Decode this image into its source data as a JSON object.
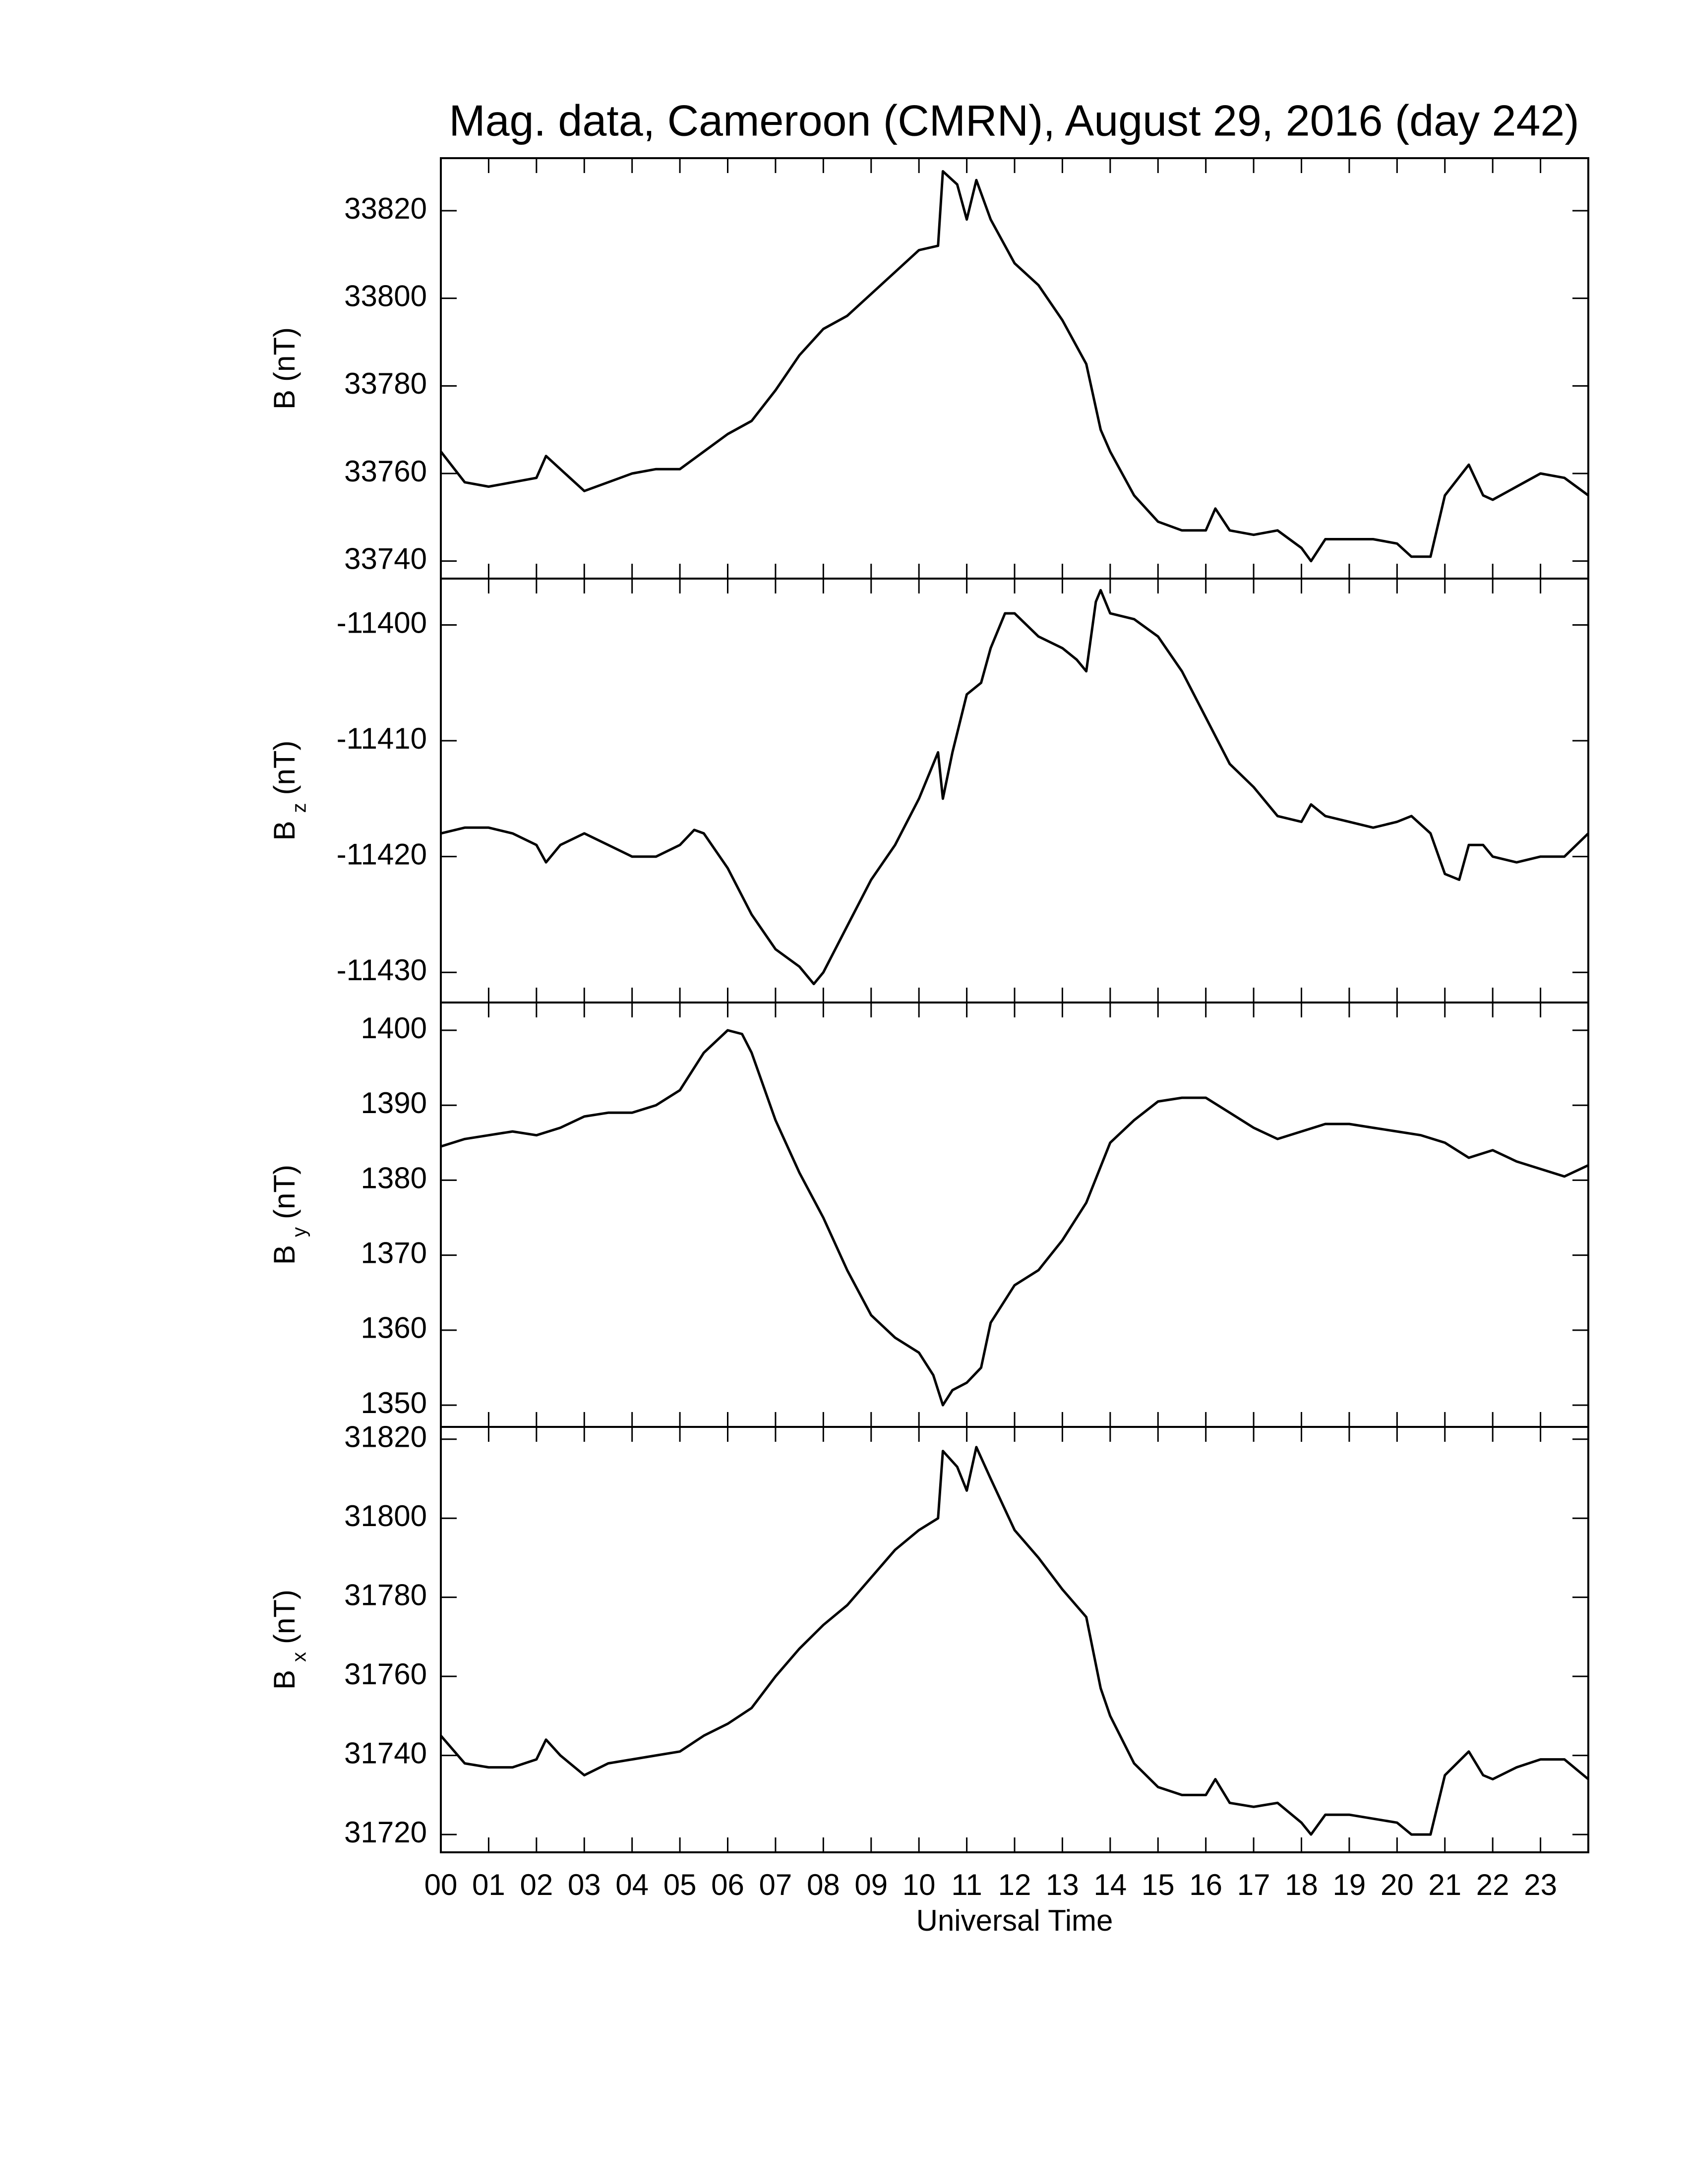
{
  "chart_data": [
    {
      "type": "line",
      "title": "Mag. data, Cameroon (CMRN), August 29, 2016 (day 242)",
      "ylabel": "B",
      "ylabel_unit": "(nT)",
      "color": "#000000",
      "xlim": [
        0,
        24
      ],
      "ylim": [
        33736,
        33832
      ],
      "yticks": [
        33740,
        33760,
        33780,
        33800,
        33820
      ],
      "x": [
        0,
        0.5,
        1,
        1.5,
        2,
        2.2,
        2.5,
        3,
        3.5,
        4,
        4.5,
        5,
        5.5,
        6,
        6.5,
        7,
        7.5,
        8,
        8.5,
        9,
        9.5,
        10,
        10.4,
        10.5,
        10.8,
        11,
        11.2,
        11.5,
        12,
        12.5,
        13,
        13.5,
        13.8,
        14,
        14.5,
        15,
        15.5,
        16,
        16.2,
        16.5,
        17,
        17.5,
        18,
        18.2,
        18.5,
        19,
        19.5,
        20,
        20.3,
        20.7,
        21,
        21.5,
        21.8,
        22,
        22.5,
        23,
        23.5,
        24
      ],
      "values": [
        33765,
        33758,
        33757,
        33758,
        33759,
        33764,
        33761,
        33756,
        33758,
        33760,
        33761,
        33761,
        33765,
        33769,
        33772,
        33779,
        33787,
        33793,
        33796,
        33801,
        33806,
        33811,
        33812,
        33829,
        33826,
        33818,
        33827,
        33818,
        33808,
        33803,
        33795,
        33785,
        33770,
        33765,
        33755,
        33749,
        33747,
        33747,
        33752,
        33747,
        33746,
        33747,
        33743,
        33740,
        33745,
        33745,
        33745,
        33744,
        33741,
        33741,
        33755,
        33762,
        33755,
        33754,
        33757,
        33760,
        33759,
        33755
      ]
    },
    {
      "type": "line",
      "ylabel": "B",
      "ylabel_subscript": "z",
      "ylabel_unit": "(nT)",
      "color": "#000000",
      "xlim": [
        0,
        24
      ],
      "ylim": [
        -11432.6,
        -11396
      ],
      "yticks": [
        -11430,
        -11420,
        -11410,
        -11400
      ],
      "x": [
        0,
        0.5,
        1,
        1.5,
        2,
        2.2,
        2.5,
        3,
        3.5,
        4,
        4.5,
        5,
        5.3,
        5.5,
        6,
        6.5,
        7,
        7.5,
        7.8,
        8,
        8.5,
        9,
        9.5,
        10,
        10.4,
        10.5,
        10.7,
        11,
        11.3,
        11.5,
        11.8,
        12,
        12.5,
        13,
        13.3,
        13.5,
        13.7,
        13.8,
        14,
        14.5,
        15,
        15.5,
        16,
        16.5,
        17,
        17.5,
        18,
        18.2,
        18.5,
        19,
        19.5,
        20,
        20.3,
        20.7,
        21,
        21.3,
        21.5,
        21.8,
        22,
        22.5,
        23,
        23.5,
        24
      ],
      "values": [
        -11418,
        -11417.5,
        -11417.5,
        -11418,
        -11419,
        -11420.5,
        -11419,
        -11418,
        -11419,
        -11420,
        -11420,
        -11419,
        -11417.7,
        -11418,
        -11421,
        -11425,
        -11428,
        -11429.5,
        -11431,
        -11430,
        -11426,
        -11422,
        -11419,
        -11415,
        -11411,
        -11415,
        -11411,
        -11406,
        -11405,
        -11402,
        -11399,
        -11399,
        -11401,
        -11402,
        -11403,
        -11404,
        -11398,
        -11397,
        -11399,
        -11399.5,
        -11401,
        -11404,
        -11408,
        -11412,
        -11414,
        -11416.5,
        -11417,
        -11415.5,
        -11416.5,
        -11417,
        -11417.5,
        -11417,
        -11416.5,
        -11418,
        -11421.5,
        -11422,
        -11419,
        -11419,
        -11420,
        -11420.5,
        -11420,
        -11420,
        -11418
      ]
    },
    {
      "type": "line",
      "ylabel": "B",
      "ylabel_subscript": "y",
      "ylabel_unit": "(nT)",
      "color": "#000000",
      "xlim": [
        0,
        24
      ],
      "ylim": [
        1347.1,
        1403.7
      ],
      "yticks": [
        1350,
        1360,
        1370,
        1380,
        1390,
        1400
      ],
      "x": [
        0,
        0.5,
        1,
        1.5,
        2,
        2.5,
        3,
        3.5,
        4,
        4.5,
        5,
        5.5,
        6,
        6.3,
        6.5,
        7,
        7.5,
        8,
        8.5,
        9,
        9.5,
        10,
        10.3,
        10.5,
        10.7,
        11,
        11.3,
        11.5,
        12,
        12.5,
        13,
        13.5,
        14,
        14.5,
        15,
        15.5,
        16,
        16.5,
        17,
        17.5,
        18,
        18.5,
        19,
        19.5,
        20,
        20.5,
        21,
        21.5,
        22,
        22.5,
        23,
        23.5,
        24
      ],
      "values": [
        1384.5,
        1385.5,
        1386,
        1386.5,
        1386,
        1387,
        1388.5,
        1389,
        1389,
        1390,
        1392,
        1397,
        1400,
        1399.5,
        1397,
        1388,
        1381,
        1375,
        1368,
        1362,
        1359,
        1357,
        1354,
        1350,
        1352,
        1353,
        1355,
        1361,
        1366,
        1368,
        1372,
        1377,
        1385,
        1388,
        1390.5,
        1391,
        1391,
        1389,
        1387,
        1385.5,
        1386.5,
        1387.5,
        1387.5,
        1387,
        1386.5,
        1386,
        1385,
        1383,
        1384,
        1382.5,
        1381.5,
        1380.5,
        1382
      ]
    },
    {
      "type": "line",
      "ylabel": "B",
      "ylabel_subscript": "x",
      "ylabel_unit": "(nT)",
      "xlabel": "Universal Time",
      "color": "#000000",
      "xlim": [
        0,
        24
      ],
      "ylim": [
        31715.5,
        31823.1
      ],
      "yticks": [
        31720,
        31740,
        31760,
        31780,
        31800,
        31820
      ],
      "xticks": [
        {
          "value": 0,
          "label": "00"
        },
        {
          "value": 1,
          "label": "01"
        },
        {
          "value": 2,
          "label": "02"
        },
        {
          "value": 3,
          "label": "03"
        },
        {
          "value": 4,
          "label": "04"
        },
        {
          "value": 5,
          "label": "05"
        },
        {
          "value": 6,
          "label": "06"
        },
        {
          "value": 7,
          "label": "07"
        },
        {
          "value": 8,
          "label": "08"
        },
        {
          "value": 9,
          "label": "09"
        },
        {
          "value": 10,
          "label": "10"
        },
        {
          "value": 11,
          "label": "11"
        },
        {
          "value": 12,
          "label": "12"
        },
        {
          "value": 13,
          "label": "13"
        },
        {
          "value": 14,
          "label": "14"
        },
        {
          "value": 15,
          "label": "15"
        },
        {
          "value": 16,
          "label": "16"
        },
        {
          "value": 17,
          "label": "17"
        },
        {
          "value": 18,
          "label": "18"
        },
        {
          "value": 19,
          "label": "19"
        },
        {
          "value": 20,
          "label": "20"
        },
        {
          "value": 21,
          "label": "21"
        },
        {
          "value": 22,
          "label": "22"
        },
        {
          "value": 23,
          "label": "23"
        }
      ],
      "x": [
        0,
        0.5,
        1,
        1.5,
        2,
        2.2,
        2.5,
        3,
        3.5,
        4,
        4.5,
        5,
        5.5,
        6,
        6.5,
        7,
        7.5,
        8,
        8.5,
        9,
        9.5,
        10,
        10.4,
        10.5,
        10.8,
        11,
        11.2,
        11.5,
        12,
        12.5,
        13,
        13.5,
        13.8,
        14,
        14.5,
        15,
        15.5,
        16,
        16.2,
        16.5,
        17,
        17.5,
        18,
        18.2,
        18.5,
        19,
        19.5,
        20,
        20.3,
        20.7,
        21,
        21.5,
        21.8,
        22,
        22.5,
        23,
        23.5,
        24
      ],
      "values": [
        31745,
        31738,
        31737,
        31737,
        31739,
        31744,
        31740,
        31735,
        31738,
        31739,
        31740,
        31741,
        31745,
        31748,
        31752,
        31760,
        31767,
        31773,
        31778,
        31785,
        31792,
        31797,
        31800,
        31817,
        31813,
        31807,
        31818,
        31810,
        31797,
        31790,
        31782,
        31775,
        31757,
        31750,
        31738,
        31732,
        31730,
        31730,
        31734,
        31728,
        31727,
        31728,
        31723,
        31720,
        31725,
        31725,
        31724,
        31723,
        31720,
        31720,
        31735,
        31741,
        31735,
        31734,
        31737,
        31739,
        31739,
        31734
      ]
    }
  ]
}
